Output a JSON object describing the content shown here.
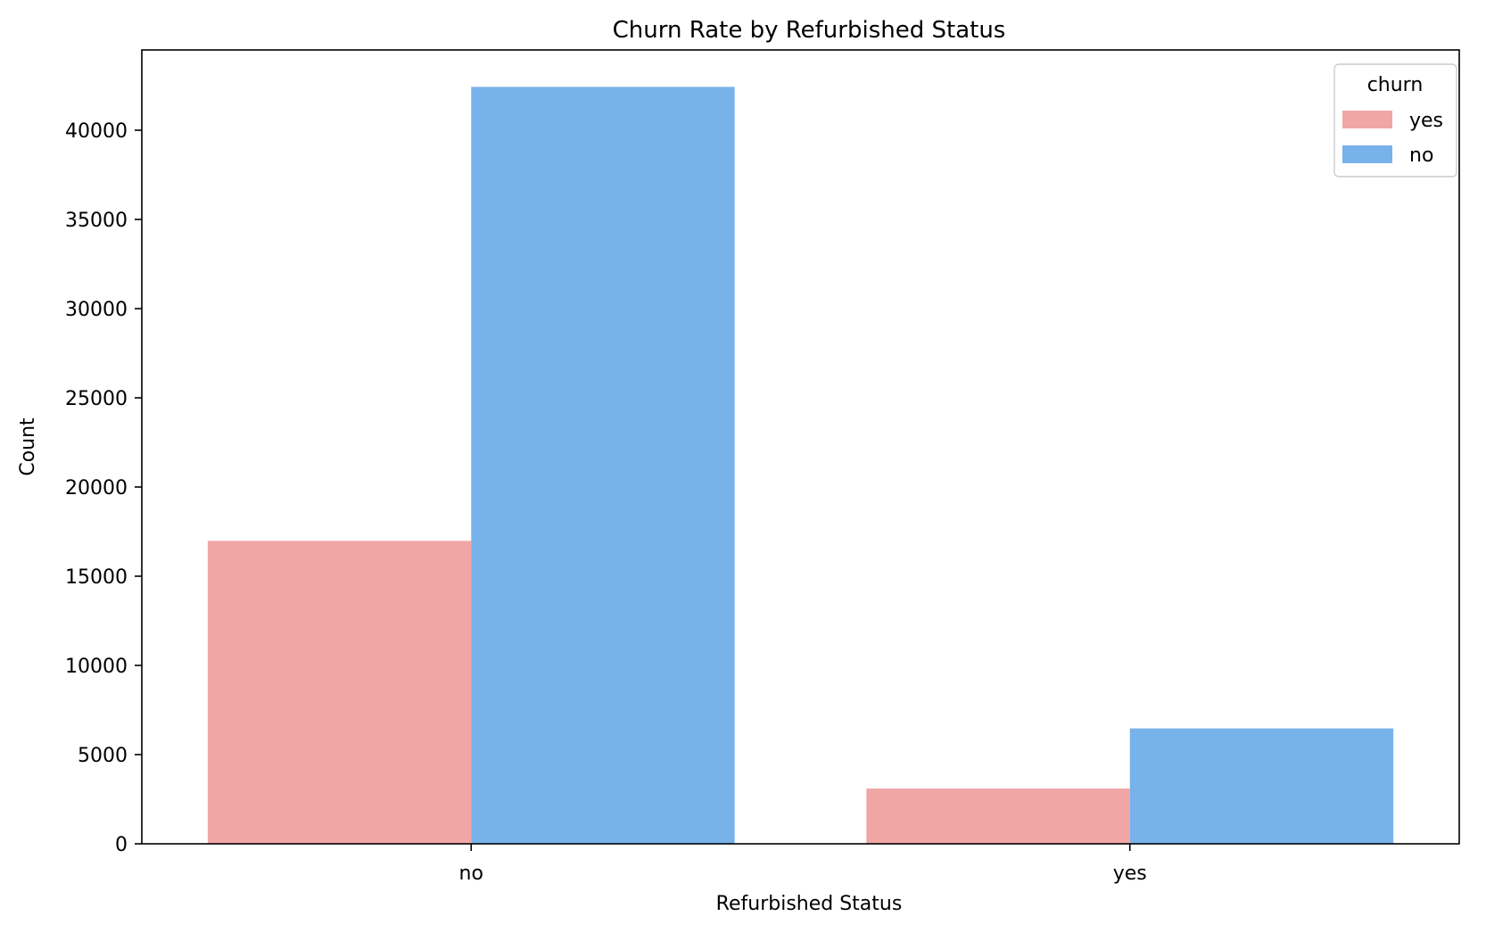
{
  "chart_data": {
    "type": "bar",
    "title": "Churn Rate by Refurbished Status",
    "xlabel": "Refurbished Status",
    "ylabel": "Count",
    "categories": [
      "no",
      "yes"
    ],
    "series": [
      {
        "name": "yes",
        "color": "#f1a6a6",
        "values": [
          16980,
          3100
        ]
      },
      {
        "name": "no",
        "color": "#78b2ea",
        "values": [
          42430,
          6470
        ]
      }
    ],
    "ylim": [
      0,
      44500
    ],
    "yticks": [
      0,
      5000,
      10000,
      15000,
      20000,
      25000,
      30000,
      35000,
      40000
    ],
    "ytick_labels": [
      "0",
      "5000",
      "10000",
      "15000",
      "20000",
      "25000",
      "30000",
      "35000",
      "40000"
    ],
    "legend": {
      "title": "churn",
      "placement": "upper right"
    },
    "grid": false
  }
}
